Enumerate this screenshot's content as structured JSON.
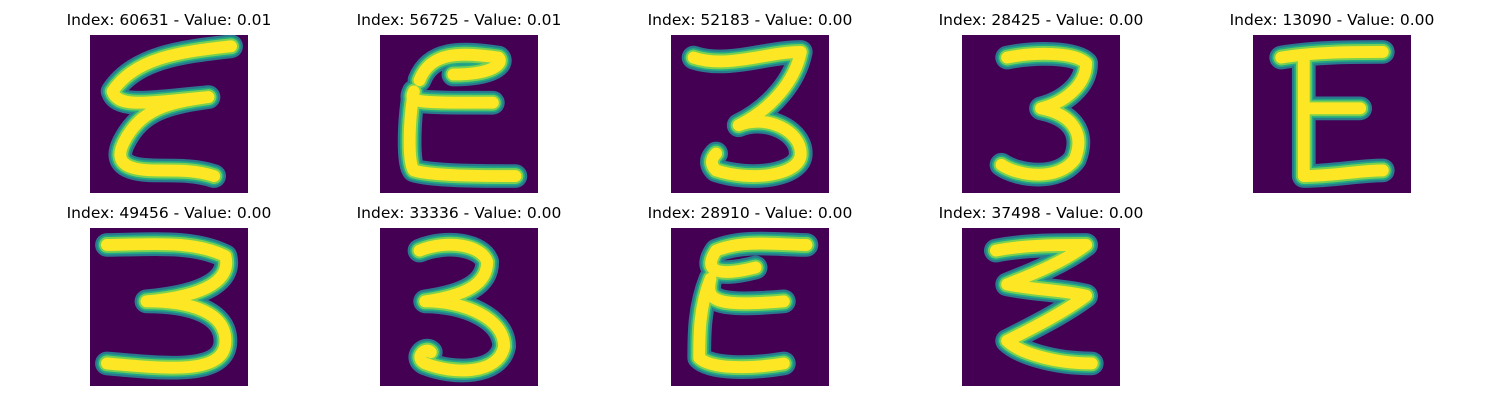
{
  "colors": {
    "background": "#440154",
    "stroke_core": "#fde725",
    "stroke_mid": "#7ad151",
    "stroke_edge": "#22a884",
    "stroke_outer": "#2a788e"
  },
  "panels": [
    {
      "title": "Index: 60631 - Value: 0.01",
      "glyph": "rotated-E-like"
    },
    {
      "title": "Index: 56725 - Value: 0.01",
      "glyph": "E-like"
    },
    {
      "title": "Index: 52183 - Value: 0.00",
      "glyph": "3-like"
    },
    {
      "title": "Index: 28425 - Value: 0.00",
      "glyph": "3-like"
    },
    {
      "title": "Index: 13090 - Value: 0.00",
      "glyph": "E-like"
    },
    {
      "title": "Index: 49456 - Value: 0.00",
      "glyph": "3-like"
    },
    {
      "title": "Index: 33336 - Value: 0.00",
      "glyph": "3-like"
    },
    {
      "title": "Index: 28910 - Value: 0.00",
      "glyph": "E-like"
    },
    {
      "title": "Index: 37498 - Value: 0.00",
      "glyph": "zigzag-like"
    }
  ]
}
